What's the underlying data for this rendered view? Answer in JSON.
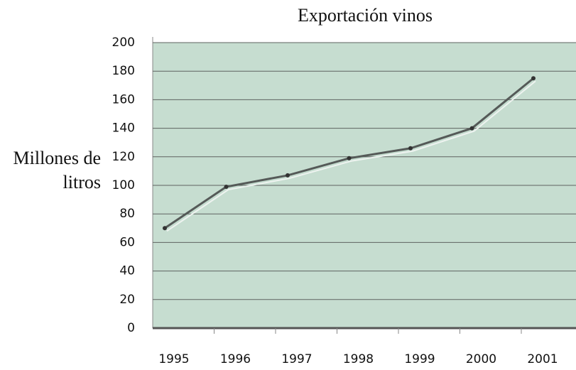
{
  "chart_data": {
    "type": "line",
    "title": "Exportación vinos",
    "y_label": "Millones de litros",
    "categories": [
      "1995",
      "1996",
      "1997",
      "1998",
      "1999",
      "2000",
      "2001"
    ],
    "values": [
      70,
      99,
      107,
      119,
      126,
      140,
      175
    ],
    "color": "#555a58",
    "ylim": [
      0,
      200
    ],
    "yticks": [
      0,
      20,
      40,
      60,
      80,
      100,
      120,
      140,
      160,
      180,
      200
    ],
    "grid": true
  }
}
